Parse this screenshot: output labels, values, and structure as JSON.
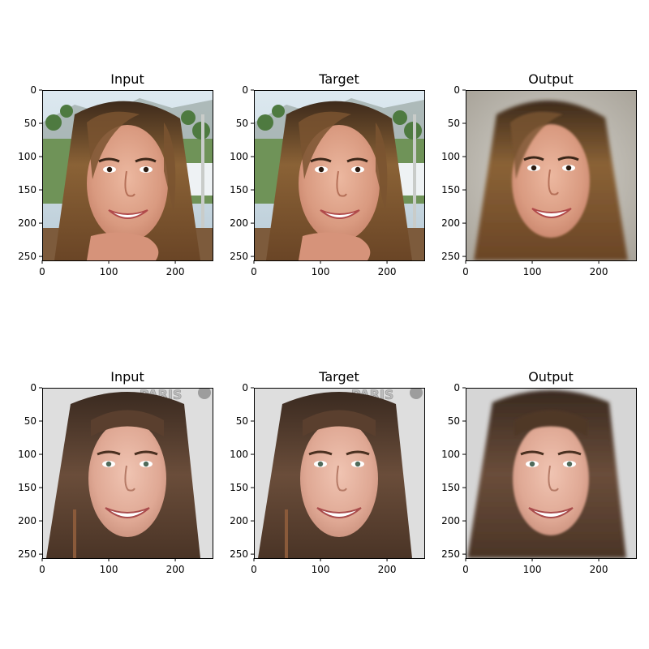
{
  "rows": [
    {
      "panels": [
        {
          "title": "Input",
          "scene": "face-light-brown-hair-outdoor-palms-hand-chin"
        },
        {
          "title": "Target",
          "scene": "face-light-brown-hair-outdoor-palms-hand-chin"
        },
        {
          "title": "Output",
          "scene": "face-light-brown-hair-blurry-background"
        }
      ]
    },
    {
      "panels": [
        {
          "title": "Input",
          "scene": "face-dark-brown-hair-paris-backdrop"
        },
        {
          "title": "Target",
          "scene": "face-dark-brown-hair-paris-backdrop"
        },
        {
          "title": "Output",
          "scene": "face-dark-brown-hair-plain-gray-background"
        }
      ]
    }
  ],
  "axes": {
    "x_ticks": [
      "0",
      "100",
      "200"
    ],
    "y_ticks": [
      "0",
      "50",
      "100",
      "150",
      "200",
      "250"
    ],
    "x_values": [
      0,
      100,
      200
    ],
    "y_values": [
      0,
      50,
      100,
      150,
      200,
      250
    ],
    "image_size": 256
  },
  "backdrop_text": "PARIS",
  "colors": {
    "skin_light": "#e2a58c",
    "hair_light": "#8a6236",
    "hair_dark": "#5a3f2e",
    "sky": "#cfe0ea",
    "foliage": "#5f8a4f",
    "backdrop_gray": "#dcdcdc"
  }
}
